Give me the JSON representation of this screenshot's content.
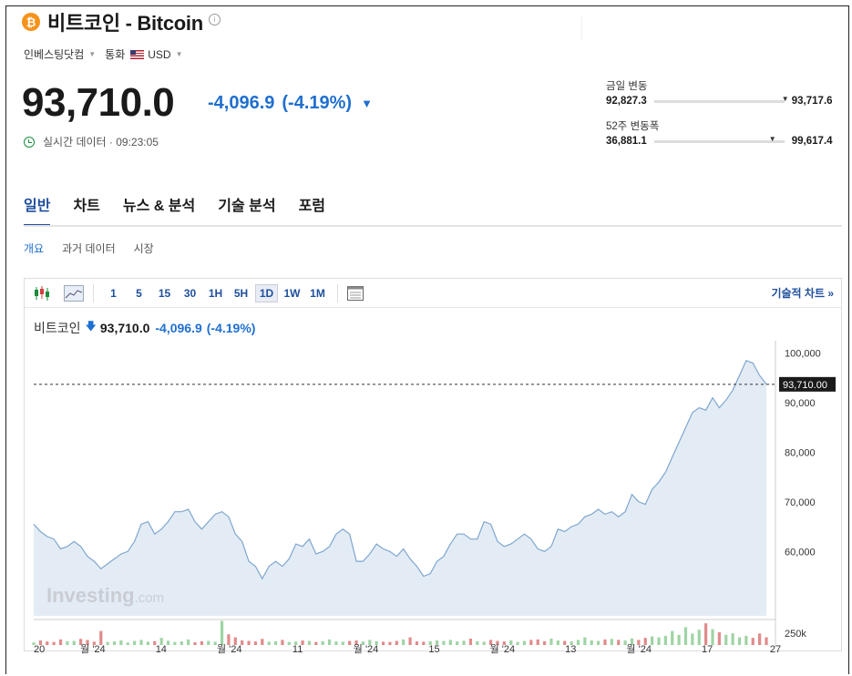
{
  "header": {
    "icon_glyph": "₿",
    "title": "비트코인 - Bitcoin",
    "info_glyph": "i"
  },
  "meta": {
    "source": "인베스팅닷컴",
    "currency_label": "통화",
    "currency": "USD"
  },
  "quote": {
    "price": "93,710.0",
    "change": "-4,096.9",
    "change_pct": "(-4.19%)",
    "realtime": "실시간 데이터 · 09:23:05"
  },
  "ranges": {
    "day_label": "금일 변동",
    "day_low": "92,827.3",
    "day_high": "93,717.6",
    "week52_label": "52주 변동폭",
    "week52_low": "36,881.1",
    "week52_high": "99,617.4"
  },
  "tabs": [
    "일반",
    "차트",
    "뉴스 & 분석",
    "기술 분석",
    "포럼"
  ],
  "subtabs": [
    "개요",
    "과거 데이터",
    "시장"
  ],
  "toolbar": {
    "intervals": [
      "1",
      "5",
      "15",
      "30",
      "1H",
      "5H",
      "1D",
      "1W",
      "1M"
    ],
    "active_interval": "1D",
    "tech_chart_label": "기술적 차트 »"
  },
  "chart_header": {
    "name": "비트코인",
    "price": "93,710.0",
    "change": "-4,096.9",
    "change_pct": "(-4.19%)"
  },
  "colors": {
    "accent": "#1f4f9c",
    "down": "#1f6fd0",
    "btc": "#f7931a"
  },
  "chart_data": {
    "type": "area",
    "y_ticks": [
      100000,
      90000,
      80000,
      70000,
      60000
    ],
    "y_tick_labels": [
      "100,000",
      "90,000",
      "80,000",
      "70,000",
      "60,000"
    ],
    "ylim": [
      47000,
      102500
    ],
    "last_price_label": "93,710.00",
    "last_value": 93710,
    "volume_label": "250k",
    "x_labels": [
      "20",
      "월 '24",
      "14",
      "월 '24",
      "11",
      "월 '24",
      "15",
      "월 '24",
      "13",
      "월 '24",
      "17",
      "27"
    ],
    "watermark": "Investing",
    "watermark_suffix": ".com",
    "values": [
      65500,
      64000,
      63000,
      62500,
      60500,
      61000,
      62000,
      61000,
      59000,
      58000,
      56500,
      57500,
      58500,
      59500,
      60000,
      62000,
      65500,
      66000,
      63500,
      64500,
      66000,
      68000,
      68000,
      68500,
      66000,
      64500,
      66000,
      67500,
      68000,
      67000,
      63500,
      62000,
      58000,
      57000,
      54500,
      57000,
      58000,
      57000,
      58500,
      61500,
      61000,
      62500,
      59500,
      60000,
      61000,
      63500,
      64500,
      63500,
      58000,
      58000,
      59500,
      61500,
      60500,
      60000,
      59000,
      60500,
      58500,
      57000,
      55000,
      55500,
      58000,
      59000,
      61500,
      63500,
      63500,
      62500,
      62500,
      66000,
      65500,
      62000,
      61000,
      61500,
      62500,
      63500,
      62500,
      60500,
      60000,
      61000,
      64500,
      64000,
      65000,
      65500,
      67000,
      67500,
      68500,
      67500,
      68000,
      67000,
      68000,
      71500,
      70000,
      69500,
      72500,
      74000,
      76000,
      79000,
      82000,
      85000,
      88000,
      89000,
      88500,
      91000,
      89000,
      90500,
      92500,
      95500,
      98500,
      98000,
      95500,
      93710
    ],
    "volumes": [
      0.1,
      0.18,
      0.14,
      0.12,
      0.22,
      0.15,
      0.16,
      0.24,
      0.2,
      0.13,
      0.55,
      0.12,
      0.14,
      0.18,
      0.1,
      0.16,
      0.2,
      0.13,
      0.15,
      0.28,
      0.17,
      0.12,
      0.14,
      0.22,
      0.11,
      0.15,
      0.16,
      0.13,
      0.95,
      0.42,
      0.3,
      0.18,
      0.16,
      0.14,
      0.24,
      0.13,
      0.15,
      0.2,
      0.12,
      0.14,
      0.18,
      0.16,
      0.12,
      0.15,
      0.22,
      0.14,
      0.13,
      0.16,
      0.18,
      0.14,
      0.2,
      0.15,
      0.13,
      0.12,
      0.16,
      0.22,
      0.3,
      0.14,
      0.13,
      0.15,
      0.18,
      0.16,
      0.2,
      0.14,
      0.17,
      0.25,
      0.15,
      0.13,
      0.2,
      0.16,
      0.14,
      0.18,
      0.12,
      0.16,
      0.2,
      0.22,
      0.15,
      0.25,
      0.18,
      0.16,
      0.14,
      0.2,
      0.3,
      0.18,
      0.16,
      0.22,
      0.24,
      0.2,
      0.18,
      0.26,
      0.2,
      0.28,
      0.34,
      0.3,
      0.36,
      0.55,
      0.4,
      0.7,
      0.45,
      0.6,
      0.85,
      0.62,
      0.5,
      0.4,
      0.46,
      0.3,
      0.36,
      0.28,
      0.45,
      0.3
    ]
  }
}
